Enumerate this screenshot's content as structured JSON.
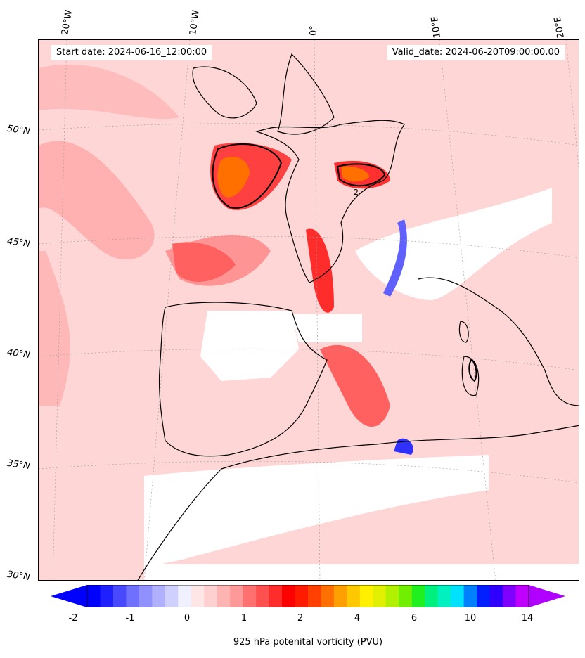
{
  "header": {
    "start_date": "Start date: 2024-06-16_12:00:00",
    "valid_date": "Valid_date: 2024-06-20T09:00:00.00"
  },
  "longitude_labels": [
    "20°W",
    "10°W",
    "0°",
    "10°E",
    "20°E"
  ],
  "latitude_labels": [
    "50°N",
    "45°N",
    "40°N",
    "35°N",
    "30°N"
  ],
  "contour_label": "2",
  "colorbar": {
    "label": "925 hPa potenital vorticity (PVU)",
    "ticks": [
      "-2",
      "-1",
      "0",
      "1",
      "2",
      "4",
      "6",
      "10",
      "14"
    ],
    "colors": [
      "#0000ff",
      "#2020ff",
      "#4848ff",
      "#7070ff",
      "#9090ff",
      "#b0b0ff",
      "#d0d0ff",
      "#f0f0ff",
      "#ffe6e6",
      "#ffd0d0",
      "#ffb4b4",
      "#ff9898",
      "#ff7070",
      "#ff5050",
      "#ff2c2c",
      "#ff0000",
      "#ff1a00",
      "#ff4000",
      "#ff7000",
      "#ffa000",
      "#ffc800",
      "#fff000",
      "#e0f000",
      "#b0f000",
      "#70f000",
      "#20f020",
      "#00f080",
      "#00f0c0",
      "#00e0ff",
      "#0080ff",
      "#0020ff",
      "#3000ff",
      "#8000ff",
      "#c000ff"
    ],
    "under_color": "#0000ff",
    "over_color": "#b000ff"
  },
  "colors": {
    "background_field": "#ffd6d6",
    "coastline": "#000000",
    "white_mask": "#ffffff"
  }
}
